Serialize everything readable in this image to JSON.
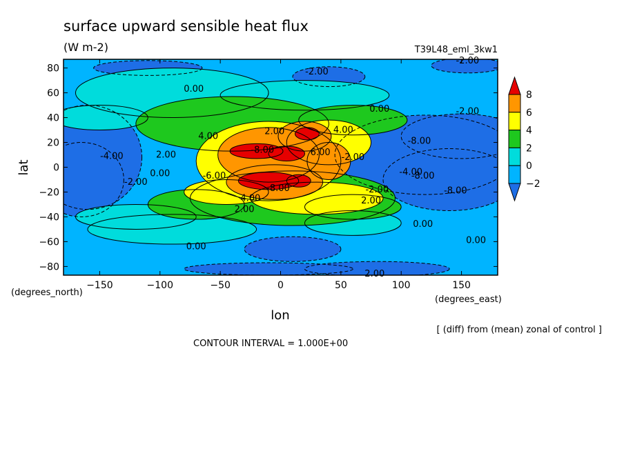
{
  "chart_data": {
    "type": "heatmap",
    "title": "surface upward sensible heat flux",
    "units": "(W m-2)",
    "experiment": "T39L48_eml_3kw1",
    "xlabel": "lon",
    "ylabel": "lat",
    "xunits": "(degrees_east)",
    "yunits": "(degrees_north)",
    "xlim": [
      -180,
      180
    ],
    "ylim": [
      -87,
      87
    ],
    "xticks": [
      -150,
      -100,
      -50,
      0,
      50,
      100,
      150
    ],
    "yticks": [
      80,
      60,
      40,
      20,
      0,
      -20,
      -40,
      -60,
      -80
    ],
    "colorbar": {
      "levels": [
        -2,
        0,
        2,
        4,
        6,
        8
      ],
      "colors": [
        "#1e6ee6",
        "#00b4ff",
        "#00dcdc",
        "#1ec81e",
        "#ffff00",
        "#ff9600",
        "#e60000"
      ]
    },
    "contour_labels": [
      {
        "text": "-2.00",
        "lon": 30,
        "lat": 77
      },
      {
        "text": "-2.00",
        "lon": 155,
        "lat": 86
      },
      {
        "text": "0.00",
        "lon": -72,
        "lat": 63
      },
      {
        "text": "0.00",
        "lon": 82,
        "lat": 47
      },
      {
        "text": "-2.00",
        "lon": 155,
        "lat": 45
      },
      {
        "text": "4.00",
        "lon": -60,
        "lat": 25
      },
      {
        "text": "2.00",
        "lon": -5,
        "lat": 29
      },
      {
        "text": "4.00",
        "lon": 52,
        "lat": 30
      },
      {
        "text": "-4.00",
        "lon": -140,
        "lat": 9
      },
      {
        "text": "2.00",
        "lon": -95,
        "lat": 10
      },
      {
        "text": "-8.00",
        "lon": -15,
        "lat": 14
      },
      {
        "text": "6.00",
        "lon": 33,
        "lat": 12
      },
      {
        "text": "-8.00",
        "lon": 115,
        "lat": 21
      },
      {
        "text": "-2.00",
        "lon": 60,
        "lat": 8
      },
      {
        "text": "0.00",
        "lon": -100,
        "lat": -5
      },
      {
        "text": "-2.00",
        "lon": -120,
        "lat": -12
      },
      {
        "text": "-6.00",
        "lon": -55,
        "lat": -7
      },
      {
        "text": "-4.00",
        "lon": 108,
        "lat": -4
      },
      {
        "text": "-8.00",
        "lon": 118,
        "lat": -7
      },
      {
        "text": "-8.00",
        "lon": -2,
        "lat": -17
      },
      {
        "text": "-2.00",
        "lon": 80,
        "lat": -18
      },
      {
        "text": "-8.00",
        "lon": 145,
        "lat": -19
      },
      {
        "text": "4.00",
        "lon": -25,
        "lat": -25
      },
      {
        "text": "2.00",
        "lon": 75,
        "lat": -27
      },
      {
        "text": "2.00",
        "lon": -30,
        "lat": -34
      },
      {
        "text": "0.00",
        "lon": 118,
        "lat": -46
      },
      {
        "text": "0.00",
        "lon": -70,
        "lat": -64
      },
      {
        "text": "0.00",
        "lon": 162,
        "lat": -59
      },
      {
        "text": "2.00",
        "lon": 78,
        "lat": -86
      }
    ]
  },
  "footer": {
    "comment": "[ (diff) from (mean) zonal of control ]",
    "contour_interval": "CONTOUR INTERVAL = 1.000E+00"
  }
}
